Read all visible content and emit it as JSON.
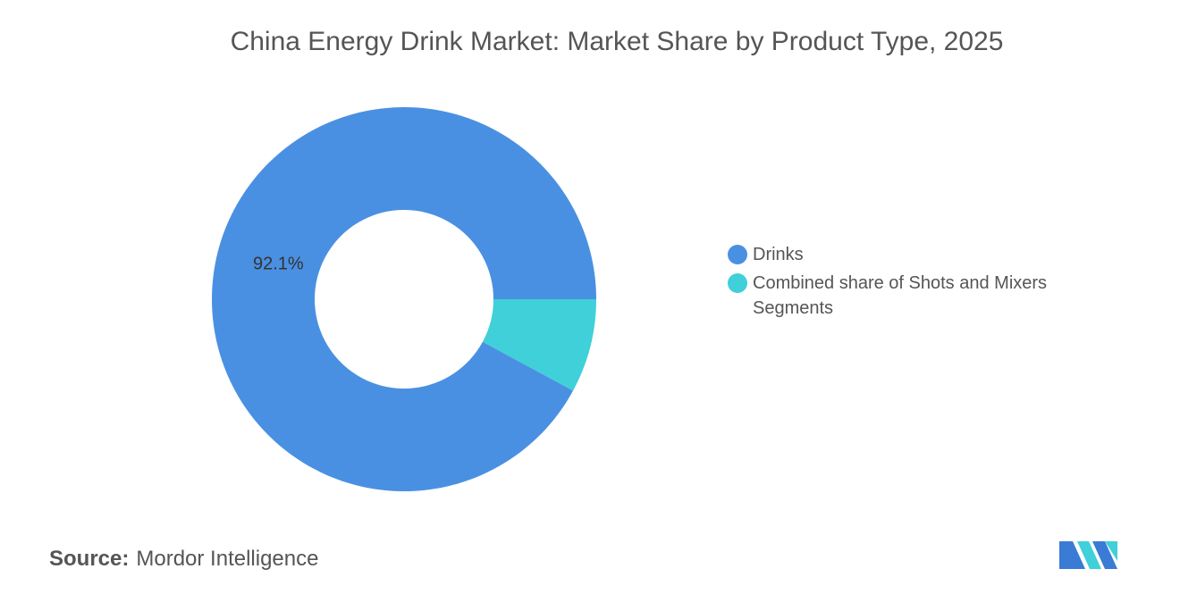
{
  "chart_data": {
    "type": "donut",
    "title": "China Energy Drink Market: Market Share by Product Type, 2025",
    "categories": [
      "Drinks",
      "Combined share of Shots and Mixers Segments"
    ],
    "values": [
      92.1,
      7.9
    ],
    "value_labels": [
      "92.1%",
      null
    ],
    "colors": [
      "#4a90e2",
      "#3fd0d9"
    ],
    "legend": "right"
  },
  "source": {
    "label": "Source:",
    "text": "Mordor Intelligence"
  }
}
